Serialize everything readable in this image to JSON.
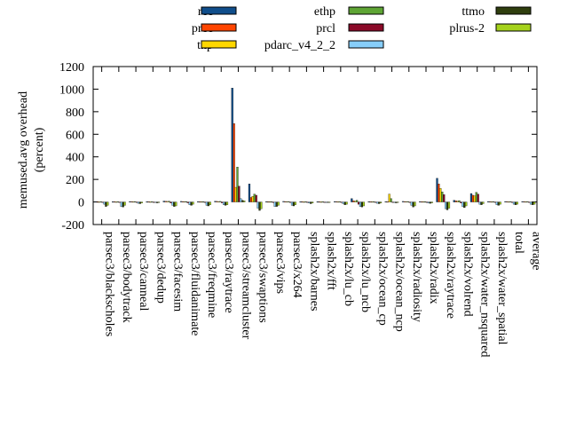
{
  "chart_data": {
    "type": "bar",
    "ylabel_lines": [
      "memused.avg overhead",
      "(percent)"
    ],
    "ylim": [
      -200,
      1200
    ],
    "yticks": [
      -200,
      0,
      200,
      400,
      600,
      800,
      1000,
      1200
    ],
    "grid": false,
    "legend_position": "top",
    "categories": [
      "parsec3/blackscholes",
      "parsec3/bodytrack",
      "parsec3/canneal",
      "parsec3/dedup",
      "parsec3/facesim",
      "parsec3/fluidanimate",
      "parsec3/freqmine",
      "parsec3/raytrace",
      "parsec3/streamcluster",
      "parsec3/swaptions",
      "parsec3/vips",
      "parsec3/x264",
      "splash2x/barnes",
      "splash2x/fft",
      "splash2x/lu_cb",
      "splash2x/lu_ncb",
      "splash2x/ocean_cp",
      "splash2x/ocean_ncp",
      "splash2x/radiosity",
      "splash2x/radix",
      "splash2x/raytrace",
      "splash2x/volrend",
      "splash2x/water_nsquared",
      "splash2x/water_spatial",
      "total",
      "average"
    ],
    "series": [
      {
        "name": "rec",
        "color": "#104e8b",
        "values": [
          3,
          2,
          4,
          2,
          8,
          5,
          3,
          6,
          1010,
          160,
          3,
          5,
          2,
          2,
          4,
          30,
          3,
          3,
          5,
          3,
          210,
          15,
          75,
          4,
          4,
          4
        ]
      },
      {
        "name": "prec",
        "color": "#ff4500",
        "values": [
          2,
          2,
          3,
          2,
          6,
          4,
          2,
          5,
          695,
          40,
          2,
          4,
          2,
          2,
          3,
          10,
          2,
          2,
          4,
          2,
          160,
          10,
          60,
          3,
          3,
          3
        ]
      },
      {
        "name": "thp",
        "color": "#ffd700",
        "values": [
          1,
          1,
          2,
          1,
          5,
          3,
          2,
          4,
          130,
          50,
          2,
          3,
          1,
          1,
          2,
          8,
          2,
          70,
          3,
          2,
          120,
          8,
          55,
          2,
          2,
          2
        ]
      },
      {
        "name": "ethp",
        "color": "#5ea534",
        "values": [
          2,
          2,
          3,
          2,
          7,
          4,
          2,
          5,
          310,
          70,
          2,
          4,
          2,
          2,
          3,
          15,
          2,
          30,
          4,
          2,
          90,
          12,
          85,
          3,
          3,
          3
        ]
      },
      {
        "name": "prcl",
        "color": "#8b0a28",
        "values": [
          -5,
          -3,
          -4,
          -2,
          -10,
          -8,
          -5,
          -8,
          140,
          60,
          -6,
          -5,
          -3,
          -2,
          -4,
          -20,
          -4,
          -3,
          -6,
          -3,
          65,
          -10,
          70,
          -5,
          -5,
          -5
        ]
      },
      {
        "name": "pdarc_v4_2_2",
        "color": "#87cefa",
        "values": [
          -20,
          -40,
          -12,
          -4,
          -30,
          -25,
          -30,
          -25,
          30,
          -55,
          -40,
          -30,
          -10,
          -3,
          -15,
          -40,
          -12,
          -5,
          -30,
          -10,
          -60,
          -40,
          -20,
          -25,
          -20,
          -20
        ]
      },
      {
        "name": "ttmo",
        "color": "#2f3e0e",
        "values": [
          -40,
          -45,
          -15,
          -8,
          -40,
          -30,
          -35,
          -30,
          15,
          -75,
          -40,
          -35,
          -15,
          -5,
          -25,
          -45,
          -15,
          -8,
          -45,
          -12,
          -70,
          -50,
          -25,
          -30,
          -25,
          -25
        ]
      },
      {
        "name": "plrus-2",
        "color": "#a5d21c",
        "values": [
          -30,
          -30,
          -10,
          -5,
          -35,
          -20,
          -25,
          -25,
          10,
          -60,
          -30,
          -25,
          -10,
          -3,
          -20,
          -35,
          -10,
          -5,
          -35,
          -8,
          -55,
          -35,
          -15,
          -20,
          -20,
          -20
        ]
      }
    ]
  }
}
